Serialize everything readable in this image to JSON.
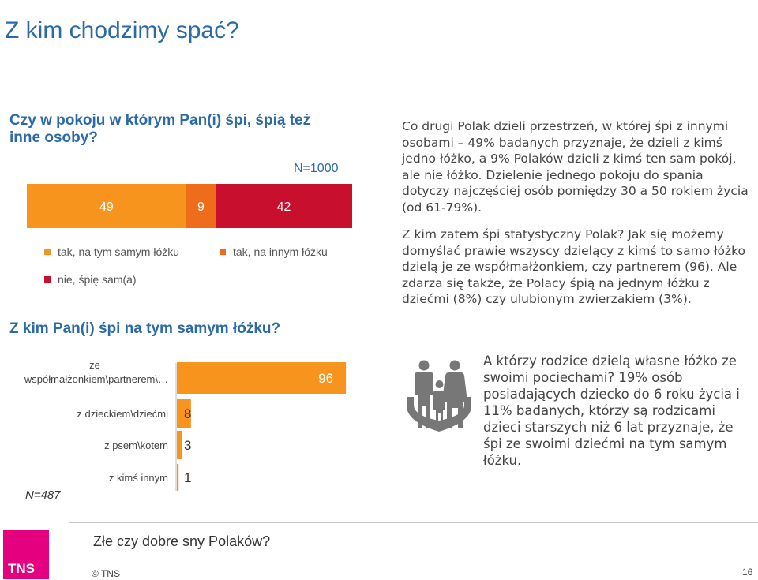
{
  "slide": {
    "title": "Z kim chodzimy spać?",
    "question1": "Czy w pokoju w którym Pan(i) śpi, śpią też inne osoby?",
    "n1": "N=1000",
    "question2": "Z kim Pan(i) śpi na tym samym łóżku?",
    "n2": "N=487"
  },
  "colors": {
    "title_blue": "#2b6aa5",
    "orange_light": "#f7941d",
    "orange_dark": "#ef6c1a",
    "red": "#c8102e",
    "tns_magenta": "#e4007e",
    "icon_gray": "#777777"
  },
  "chart_data": [
    {
      "type": "bar",
      "stacked": true,
      "orientation": "horizontal",
      "series": [
        {
          "name": "tak, na tym samym łóżku",
          "values": [
            49
          ],
          "color": "#f7941d"
        },
        {
          "name": "tak, na innym łóżku",
          "values": [
            9
          ],
          "color": "#ef6c1a"
        },
        {
          "name": "nie, śpię sam(a)",
          "values": [
            42
          ],
          "color": "#c8102e"
        }
      ],
      "legend_placement": "bottom"
    },
    {
      "type": "bar",
      "orientation": "horizontal",
      "categories": [
        "ze współmałżonkiem\\partnerem\\…",
        "z dzieckiem\\dziećmi",
        "z psem\\kotem",
        "z kimś innym"
      ],
      "category_lines": [
        [
          "ze",
          "współmałżonkiem\\partnerem\\…"
        ],
        [
          "z dzieckiem\\dziećmi"
        ],
        [
          "z psem\\kotem"
        ],
        [
          "z kimś innym"
        ]
      ],
      "values": [
        96,
        8,
        3,
        1
      ],
      "color": "#f7941d",
      "xlim": [
        0,
        100
      ]
    }
  ],
  "paragraphs": [
    "Co drugi Polak dzieli przestrzeń, w której śpi z innymi osobami – 49% badanych przyznaje, że dzieli z kimś jedno łóżko, a 9% Polaków dzieli z kimś ten sam pokój, ale nie łóżko. Dzielenie jednego pokoju do spania dotyczy najczęściej osób pomiędzy 30 a 50 rokiem życia (od 61-79%).",
    "Z kim zatem śpi statystyczny Polak? Jak się możemy domyślać prawie wszyscy dzielący z kimś to samo łóżko dzielą je ze współmałżonkiem, czy partnerem (96). Ale zdarza się także, że Polacy śpią na jednym łóżku z dziećmi (8%) czy ulubionym zwierzakiem (3%).",
    "A którzy rodzice dzielą własne łóżko ze swoimi pociechami? 19% osób posiadających dziecko do 6 roku życia i 11% badanych, którzy są rodzicami dzieci starszych niż 6 lat przyznaje, że śpi ze swoimi dziećmi na tym samym łóżku."
  ],
  "footer": {
    "title": "Złe czy dobre sny Polaków?",
    "copyright": "© TNS",
    "page_number": "16",
    "logo_text": "TNS"
  },
  "icons": {
    "family": "family-icon"
  }
}
